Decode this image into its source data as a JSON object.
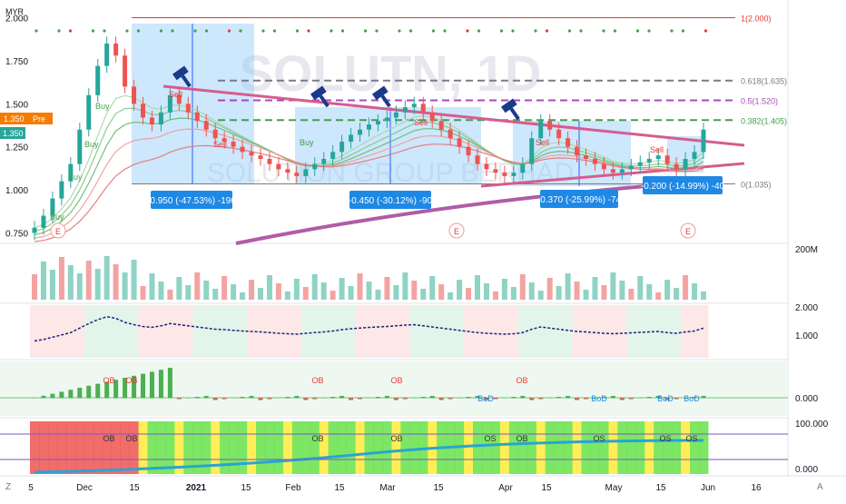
{
  "header": {
    "currency": "MYR",
    "watermark_ticker": "SOLUTN, 1D",
    "watermark_company": "SOLUTION GROUP BERHAD"
  },
  "price_badges": {
    "pre": {
      "value": "1.350",
      "tag": "Pre",
      "color": "#f57c00"
    },
    "last": {
      "value": "1.350",
      "color": "#26a69a"
    }
  },
  "fib_levels": [
    {
      "label": "1(2.000)",
      "value": 2.0,
      "color": "#e53935"
    },
    {
      "label": "0.618(1.635)",
      "value": 1.635,
      "color": "#787b86"
    },
    {
      "label": "0.5(1.520)",
      "value": 1.52,
      "color": "#ab47bc"
    },
    {
      "label": "0.382(1.405)",
      "value": 1.405,
      "color": "#43a047"
    },
    {
      "label": "0(1.035)",
      "value": 1.035,
      "color": "#787b86"
    }
  ],
  "range_measurements": [
    {
      "text": "-0.950 (-47.53%) -190"
    },
    {
      "text": "-0.450 (-30.12%) -90"
    },
    {
      "text": "-0.370 (-25.99%) -74"
    },
    {
      "text": "-0.200 (-14.99%) -40"
    }
  ],
  "signals": {
    "buy": "Buy",
    "sell": "Sell",
    "ob": "OB",
    "bod": "BoD",
    "os": "OS",
    "earnings": "E"
  },
  "chart_data": {
    "type": "candlestick",
    "price_axis": {
      "ticks": [
        "2.000",
        "1.750",
        "1.500",
        "1.250",
        "1.000",
        "0.750"
      ],
      "range": [
        0.7,
        2.05
      ]
    },
    "x_axis_labels": [
      "5",
      "Dec",
      "15",
      "2021",
      "15",
      "Feb",
      "15",
      "Mar",
      "15",
      "Apr",
      "15",
      "May",
      "15",
      "Jun",
      "16"
    ],
    "bold_x_labels": [
      "2021"
    ],
    "price_series_close": [
      0.78,
      0.85,
      0.95,
      1.05,
      1.15,
      1.35,
      1.55,
      1.72,
      1.85,
      1.78,
      1.6,
      1.5,
      1.42,
      1.38,
      1.45,
      1.55,
      1.5,
      1.45,
      1.4,
      1.35,
      1.3,
      1.28,
      1.25,
      1.22,
      1.2,
      1.18,
      1.15,
      1.12,
      1.1,
      1.08,
      1.12,
      1.15,
      1.18,
      1.22,
      1.28,
      1.32,
      1.35,
      1.38,
      1.4,
      1.42,
      1.45,
      1.48,
      1.5,
      1.45,
      1.4,
      1.35,
      1.3,
      1.25,
      1.2,
      1.15,
      1.12,
      1.1,
      1.08,
      1.1,
      1.15,
      1.3,
      1.4,
      1.35,
      1.3,
      1.25,
      1.2,
      1.18,
      1.15,
      1.12,
      1.1,
      1.12,
      1.14,
      1.16,
      1.18,
      1.2,
      1.15,
      1.12,
      1.18,
      1.22,
      1.35
    ],
    "volume_axis": {
      "ticks": [
        "200M"
      ]
    },
    "indicator1_axis": {
      "ticks": [
        "2.000",
        "1.000"
      ]
    },
    "indicator2_axis": {
      "ticks": [
        "0.000"
      ]
    },
    "indicator3_axis": {
      "ticks": [
        "100.000",
        "0.000"
      ]
    }
  },
  "corner_buttons": {
    "left": "Z",
    "right": "A"
  }
}
